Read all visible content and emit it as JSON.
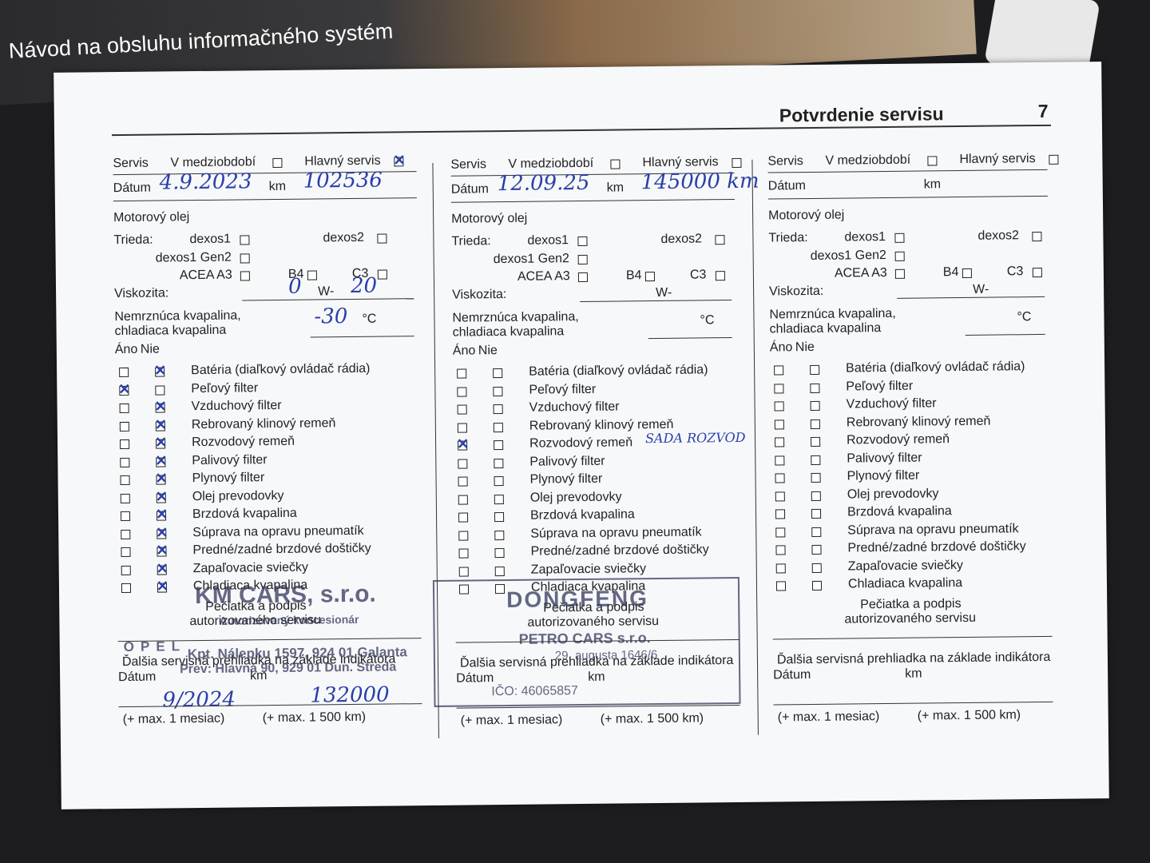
{
  "cover": {
    "title": "Návod na obsluhu informačného systém"
  },
  "page": {
    "title": "Potvrdenie servisu",
    "number": "7"
  },
  "form": {
    "servis": "Servis",
    "interim": "V medziobdobí",
    "main": "Hlavný servis",
    "date": "Dátum",
    "km": "km",
    "oil": "Motorový olej",
    "class": "Trieda:",
    "dexos1": "dexos1",
    "dexos2": "dexos2",
    "dexos1gen2": "dexos1 Gen2",
    "acea": "ACEA A3",
    "b4": "B4",
    "c3": "C3",
    "viscosity": "Viskozita:",
    "w": "W-",
    "coolant1": "Nemrznúca kvapalina,",
    "coolant2": "chladiaca kvapalina",
    "celsius": "°C",
    "yes": "Áno",
    "no": "Nie",
    "items": [
      "Batéria (diaľkový ovládač rádia)",
      "Peľový filter",
      "Vzduchový filter",
      "Rebrovaný klinový remeň",
      "Rozvodový remeň",
      "Palivový filter",
      "Plynový filter",
      "Olej prevodovky",
      "Brzdová kvapalina",
      "Súprava na opravu pneumatík",
      "Predné/zadné brzdové doštičky",
      "Zapaľovacie sviečky",
      "Chladiaca kvapalina"
    ],
    "stamp1": "Pečiatka a podpis",
    "stamp2": "autorizovaného servisu",
    "next": "Ďalšia servisná prehliadka na základe indikátora",
    "plus_month": "(+ max. 1 mesiac)",
    "plus_km": "(+ max. 1 500 km)"
  },
  "columns": [
    {
      "main_checked": true,
      "date": "4.9.2023",
      "km": "102536",
      "visc_a": "0",
      "visc_b": "20",
      "temp": "-30",
      "checks": [
        "no",
        "yes",
        "no",
        "no",
        "no",
        "no",
        "no",
        "no",
        "no",
        "no",
        "no",
        "no",
        "no"
      ],
      "next_date": "9/2024",
      "next_km": "132000"
    },
    {
      "main_checked": false,
      "date": "12.09.25",
      "km": "145000 km",
      "checks": [
        null,
        null,
        null,
        null,
        "yes",
        null,
        null,
        null,
        null,
        null,
        null,
        null,
        null
      ],
      "note_item": 4,
      "note": "SADA ROZVOD"
    },
    {
      "main_checked": false,
      "checks": [
        null,
        null,
        null,
        null,
        null,
        null,
        null,
        null,
        null,
        null,
        null,
        null,
        null
      ]
    }
  ],
  "stamps": [
    {
      "logo": "OPEL",
      "lines": [
        "KM CARS, s.r.o.",
        "Autorizovaný koncesionár",
        "Kpt. Nálepku 1597, 924 01 Galanta",
        "Prev: Hlavná 90, 929 01 Dun. Streda"
      ]
    },
    {
      "lines": [
        "DONGFENG",
        "PETRO CARS s.r.o.",
        "29. augusta 1646/6",
        "IČO: 46065857"
      ]
    }
  ]
}
